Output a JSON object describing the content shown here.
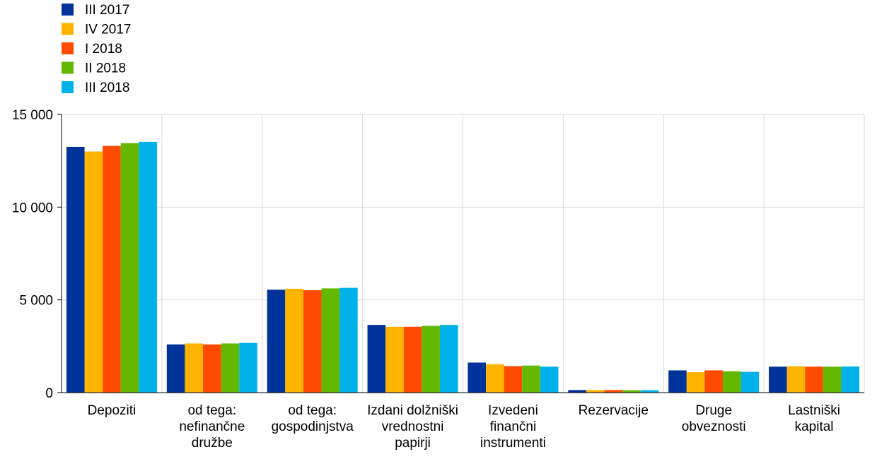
{
  "chart_data": {
    "type": "bar",
    "categories": [
      [
        "Depoziti"
      ],
      [
        "od tega:",
        "nefinančne",
        "družbe"
      ],
      [
        "od tega:",
        "gospodinjstva"
      ],
      [
        "Izdani dolžniški",
        "vrednostni",
        "papirji"
      ],
      [
        "Izvedeni",
        "finančni",
        "instrumenti"
      ],
      [
        "Rezervacije"
      ],
      [
        "Druge",
        "obveznosti"
      ],
      [
        "Lastniški",
        "kapital"
      ]
    ],
    "series": [
      {
        "name": "III 2017",
        "color": "#003399",
        "values": [
          13250,
          2600,
          5550,
          3650,
          1620,
          140,
          1200,
          1400
        ]
      },
      {
        "name": "IV 2017",
        "color": "#FFB400",
        "values": [
          13000,
          2650,
          5600,
          3550,
          1530,
          140,
          1100,
          1420
        ]
      },
      {
        "name": "I 2018",
        "color": "#FF4B00",
        "values": [
          13300,
          2600,
          5520,
          3550,
          1430,
          140,
          1200,
          1400
        ]
      },
      {
        "name": "II 2018",
        "color": "#65B800",
        "values": [
          13450,
          2650,
          5620,
          3600,
          1460,
          130,
          1150,
          1400
        ]
      },
      {
        "name": "III 2018",
        "color": "#00B1EA",
        "values": [
          13520,
          2680,
          5650,
          3650,
          1400,
          130,
          1120,
          1410
        ]
      }
    ],
    "ylim": [
      0,
      15000
    ],
    "yticks": [
      0,
      5000,
      10000,
      15000
    ],
    "ytick_labels": [
      "0",
      "5 000",
      "10 000",
      "15 000"
    ],
    "legend_position": "top-left",
    "grid": true,
    "title": "",
    "xlabel": "",
    "ylabel": ""
  }
}
